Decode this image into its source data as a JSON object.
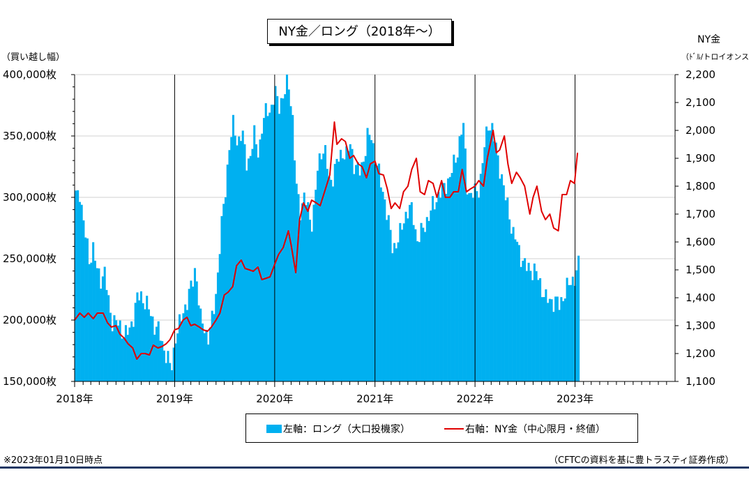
{
  "title": "NY金／ロング（2018年～）",
  "left_axis": {
    "label": "（買い越し幅）",
    "ticks": [
      "400,000枚",
      "350,000枚",
      "300,000枚",
      "250,000枚",
      "200,000枚",
      "150,000枚"
    ]
  },
  "right_axis": {
    "label_line1": "NY金",
    "label_line2": "（ﾄﾞﾙ/トロイオンス）",
    "ticks": [
      "2,200",
      "2,100",
      "2,000",
      "1,900",
      "1,800",
      "1,700",
      "1,600",
      "1,500",
      "1,400",
      "1,300",
      "1,200",
      "1,100"
    ]
  },
  "x_ticks": [
    "2018年",
    "2019年",
    "2020年",
    "2021年",
    "2022年",
    "2023年"
  ],
  "legend": {
    "bar_label": "左軸：ロング（大口投機家）",
    "line_label": "右軸：NY金（中心限月・終値）"
  },
  "footnote": "※2023年01月10日時点",
  "source": "（CFTCの資料を基に豊トラスティ証券作成）",
  "colors": {
    "bar": "#00b0f0",
    "line": "#e00000",
    "grid": "#d0d0d0",
    "bottom_rule": "#1f3864"
  },
  "chart_data": {
    "type": "bar+line",
    "x_range": [
      "2018-01-01",
      "2024-01-01"
    ],
    "left_ylim": [
      150000,
      400000
    ],
    "right_ylim": [
      1100,
      2200
    ],
    "long_positions": [
      [
        "2018-01-02",
        300000
      ],
      [
        "2018-01-16",
        306000
      ],
      [
        "2018-02-01",
        275000
      ],
      [
        "2018-02-20",
        250000
      ],
      [
        "2018-03-06",
        258000
      ],
      [
        "2018-03-20",
        240000
      ],
      [
        "2018-04-03",
        235000
      ],
      [
        "2018-04-17",
        238000
      ],
      [
        "2018-05-01",
        215000
      ],
      [
        "2018-05-15",
        200000
      ],
      [
        "2018-06-01",
        197000
      ],
      [
        "2018-06-15",
        194000
      ],
      [
        "2018-07-01",
        188000
      ],
      [
        "2018-07-15",
        190000
      ],
      [
        "2018-08-01",
        205000
      ],
      [
        "2018-08-15",
        218000
      ],
      [
        "2018-09-01",
        220000
      ],
      [
        "2018-09-15",
        213000
      ],
      [
        "2018-10-01",
        205000
      ],
      [
        "2018-10-15",
        197000
      ],
      [
        "2018-11-01",
        190000
      ],
      [
        "2018-11-15",
        180000
      ],
      [
        "2018-12-01",
        170000
      ],
      [
        "2018-12-15",
        158000
      ],
      [
        "2019-01-01",
        187000
      ],
      [
        "2019-01-15",
        195000
      ],
      [
        "2019-02-01",
        210000
      ],
      [
        "2019-02-15",
        217000
      ],
      [
        "2019-03-01",
        228000
      ],
      [
        "2019-03-15",
        245000
      ],
      [
        "2019-04-01",
        200000
      ],
      [
        "2019-04-15",
        195000
      ],
      [
        "2019-05-01",
        185000
      ],
      [
        "2019-05-15",
        200000
      ],
      [
        "2019-06-01",
        230000
      ],
      [
        "2019-06-15",
        270000
      ],
      [
        "2019-07-01",
        305000
      ],
      [
        "2019-07-15",
        340000
      ],
      [
        "2019-08-01",
        360000
      ],
      [
        "2019-08-15",
        345000
      ],
      [
        "2019-09-01",
        352000
      ],
      [
        "2019-09-15",
        330000
      ],
      [
        "2019-10-01",
        333000
      ],
      [
        "2019-10-15",
        350000
      ],
      [
        "2019-11-01",
        338000
      ],
      [
        "2019-11-15",
        358000
      ],
      [
        "2019-12-01",
        375000
      ],
      [
        "2019-12-15",
        370000
      ],
      [
        "2020-01-01",
        385000
      ],
      [
        "2020-01-15",
        377000
      ],
      [
        "2020-02-01",
        380000
      ],
      [
        "2020-02-15",
        400000
      ],
      [
        "2020-03-01",
        370000
      ],
      [
        "2020-03-15",
        310000
      ],
      [
        "2020-04-01",
        290000
      ],
      [
        "2020-04-15",
        300000
      ],
      [
        "2020-05-01",
        288000
      ],
      [
        "2020-05-15",
        278000
      ],
      [
        "2020-06-01",
        320000
      ],
      [
        "2020-06-15",
        340000
      ],
      [
        "2020-07-01",
        335000
      ],
      [
        "2020-07-15",
        312000
      ],
      [
        "2020-08-01",
        320000
      ],
      [
        "2020-08-15",
        330000
      ],
      [
        "2020-09-01",
        338000
      ],
      [
        "2020-09-15",
        333000
      ],
      [
        "2020-10-01",
        345000
      ],
      [
        "2020-10-15",
        325000
      ],
      [
        "2020-11-01",
        320000
      ],
      [
        "2020-11-15",
        330000
      ],
      [
        "2020-12-01",
        348000
      ],
      [
        "2020-12-15",
        350000
      ],
      [
        "2021-01-01",
        330000
      ],
      [
        "2021-01-15",
        315000
      ],
      [
        "2021-02-01",
        300000
      ],
      [
        "2021-02-15",
        280000
      ],
      [
        "2021-03-01",
        260000
      ],
      [
        "2021-03-15",
        262000
      ],
      [
        "2021-04-01",
        270000
      ],
      [
        "2021-04-15",
        285000
      ],
      [
        "2021-05-01",
        290000
      ],
      [
        "2021-05-15",
        288000
      ],
      [
        "2021-06-01",
        265000
      ],
      [
        "2021-06-15",
        270000
      ],
      [
        "2021-07-01",
        280000
      ],
      [
        "2021-07-15",
        285000
      ],
      [
        "2021-08-01",
        295000
      ],
      [
        "2021-08-15",
        302000
      ],
      [
        "2021-09-01",
        305000
      ],
      [
        "2021-09-15",
        312000
      ],
      [
        "2021-10-01",
        318000
      ],
      [
        "2021-10-15",
        328000
      ],
      [
        "2021-11-01",
        345000
      ],
      [
        "2021-11-15",
        360000
      ],
      [
        "2021-12-01",
        308000
      ],
      [
        "2021-12-15",
        300000
      ],
      [
        "2022-01-01",
        305000
      ],
      [
        "2022-01-15",
        310000
      ],
      [
        "2022-02-01",
        340000
      ],
      [
        "2022-02-15",
        362000
      ],
      [
        "2022-03-01",
        355000
      ],
      [
        "2022-03-15",
        340000
      ],
      [
        "2022-04-01",
        322000
      ],
      [
        "2022-04-15",
        302000
      ],
      [
        "2022-05-01",
        290000
      ],
      [
        "2022-05-15",
        270000
      ],
      [
        "2022-06-01",
        262000
      ],
      [
        "2022-06-15",
        252000
      ],
      [
        "2022-07-01",
        242000
      ],
      [
        "2022-07-15",
        243000
      ],
      [
        "2022-08-01",
        240000
      ],
      [
        "2022-08-15",
        235000
      ],
      [
        "2022-09-01",
        225000
      ],
      [
        "2022-09-15",
        215000
      ],
      [
        "2022-10-01",
        217000
      ],
      [
        "2022-10-15",
        215000
      ],
      [
        "2022-11-01",
        212000
      ],
      [
        "2022-11-15",
        220000
      ],
      [
        "2022-12-01",
        226000
      ],
      [
        "2022-12-15",
        232000
      ],
      [
        "2023-01-01",
        237000
      ],
      [
        "2023-01-10",
        244000
      ]
    ],
    "ny_gold": [
      [
        "2018-01-01",
        1320
      ],
      [
        "2018-01-20",
        1345
      ],
      [
        "2018-02-05",
        1330
      ],
      [
        "2018-02-20",
        1345
      ],
      [
        "2018-03-10",
        1325
      ],
      [
        "2018-03-25",
        1345
      ],
      [
        "2018-04-15",
        1345
      ],
      [
        "2018-05-01",
        1310
      ],
      [
        "2018-05-15",
        1295
      ],
      [
        "2018-06-01",
        1300
      ],
      [
        "2018-06-15",
        1270
      ],
      [
        "2018-07-01",
        1255
      ],
      [
        "2018-07-15",
        1235
      ],
      [
        "2018-08-01",
        1220
      ],
      [
        "2018-08-16",
        1180
      ],
      [
        "2018-09-01",
        1200
      ],
      [
        "2018-09-15",
        1200
      ],
      [
        "2018-10-01",
        1195
      ],
      [
        "2018-10-15",
        1230
      ],
      [
        "2018-11-01",
        1220
      ],
      [
        "2018-11-15",
        1225
      ],
      [
        "2018-12-01",
        1235
      ],
      [
        "2018-12-15",
        1250
      ],
      [
        "2019-01-01",
        1285
      ],
      [
        "2019-01-15",
        1290
      ],
      [
        "2019-02-01",
        1320
      ],
      [
        "2019-02-15",
        1330
      ],
      [
        "2019-03-01",
        1300
      ],
      [
        "2019-03-15",
        1305
      ],
      [
        "2019-04-01",
        1295
      ],
      [
        "2019-04-15",
        1285
      ],
      [
        "2019-05-01",
        1280
      ],
      [
        "2019-05-15",
        1295
      ],
      [
        "2019-06-01",
        1320
      ],
      [
        "2019-06-15",
        1345
      ],
      [
        "2019-07-01",
        1410
      ],
      [
        "2019-07-15",
        1420
      ],
      [
        "2019-08-01",
        1440
      ],
      [
        "2019-08-15",
        1515
      ],
      [
        "2019-09-01",
        1535
      ],
      [
        "2019-09-15",
        1505
      ],
      [
        "2019-10-01",
        1500
      ],
      [
        "2019-10-15",
        1495
      ],
      [
        "2019-11-01",
        1510
      ],
      [
        "2019-11-15",
        1465
      ],
      [
        "2019-12-01",
        1470
      ],
      [
        "2019-12-15",
        1475
      ],
      [
        "2020-01-01",
        1520
      ],
      [
        "2020-01-15",
        1555
      ],
      [
        "2020-02-01",
        1580
      ],
      [
        "2020-02-20",
        1640
      ],
      [
        "2020-03-01",
        1590
      ],
      [
        "2020-03-18",
        1490
      ],
      [
        "2020-04-01",
        1680
      ],
      [
        "2020-04-15",
        1740
      ],
      [
        "2020-05-01",
        1710
      ],
      [
        "2020-05-15",
        1750
      ],
      [
        "2020-06-01",
        1740
      ],
      [
        "2020-06-15",
        1730
      ],
      [
        "2020-07-01",
        1780
      ],
      [
        "2020-07-20",
        1840
      ],
      [
        "2020-08-06",
        2030
      ],
      [
        "2020-08-15",
        1950
      ],
      [
        "2020-09-01",
        1970
      ],
      [
        "2020-09-15",
        1960
      ],
      [
        "2020-10-01",
        1900
      ],
      [
        "2020-10-15",
        1910
      ],
      [
        "2020-11-01",
        1880
      ],
      [
        "2020-11-15",
        1870
      ],
      [
        "2020-12-01",
        1830
      ],
      [
        "2020-12-15",
        1880
      ],
      [
        "2021-01-01",
        1890
      ],
      [
        "2021-01-15",
        1845
      ],
      [
        "2021-02-01",
        1840
      ],
      [
        "2021-02-15",
        1790
      ],
      [
        "2021-03-01",
        1720
      ],
      [
        "2021-03-15",
        1740
      ],
      [
        "2021-04-01",
        1720
      ],
      [
        "2021-04-15",
        1780
      ],
      [
        "2021-05-01",
        1800
      ],
      [
        "2021-05-15",
        1860
      ],
      [
        "2021-06-01",
        1900
      ],
      [
        "2021-06-15",
        1780
      ],
      [
        "2021-07-01",
        1770
      ],
      [
        "2021-07-15",
        1820
      ],
      [
        "2021-08-01",
        1810
      ],
      [
        "2021-08-15",
        1760
      ],
      [
        "2021-09-01",
        1820
      ],
      [
        "2021-09-15",
        1760
      ],
      [
        "2021-10-01",
        1760
      ],
      [
        "2021-10-15",
        1780
      ],
      [
        "2021-11-01",
        1780
      ],
      [
        "2021-11-15",
        1860
      ],
      [
        "2021-12-01",
        1780
      ],
      [
        "2021-12-15",
        1790
      ],
      [
        "2022-01-01",
        1800
      ],
      [
        "2022-01-15",
        1820
      ],
      [
        "2022-02-01",
        1800
      ],
      [
        "2022-02-15",
        1900
      ],
      [
        "2022-03-08",
        2000
      ],
      [
        "2022-03-20",
        1920
      ],
      [
        "2022-04-01",
        1930
      ],
      [
        "2022-04-18",
        1980
      ],
      [
        "2022-05-01",
        1880
      ],
      [
        "2022-05-15",
        1810
      ],
      [
        "2022-06-01",
        1850
      ],
      [
        "2022-06-15",
        1830
      ],
      [
        "2022-07-01",
        1800
      ],
      [
        "2022-07-20",
        1700
      ],
      [
        "2022-08-01",
        1760
      ],
      [
        "2022-08-15",
        1800
      ],
      [
        "2022-09-01",
        1710
      ],
      [
        "2022-09-15",
        1680
      ],
      [
        "2022-10-01",
        1700
      ],
      [
        "2022-10-15",
        1650
      ],
      [
        "2022-11-01",
        1640
      ],
      [
        "2022-11-15",
        1770
      ],
      [
        "2022-12-01",
        1770
      ],
      [
        "2022-12-15",
        1820
      ],
      [
        "2022-12-30",
        1810
      ],
      [
        "2023-01-10",
        1920
      ]
    ]
  }
}
